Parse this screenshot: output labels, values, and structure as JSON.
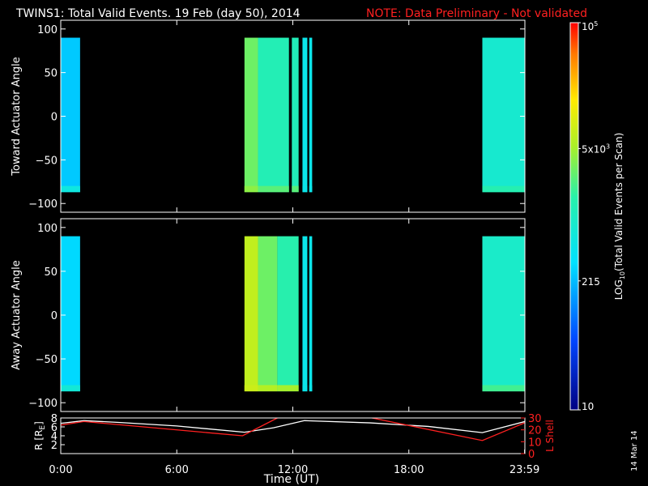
{
  "title": "TWINS1: Total Valid Events. 19 Feb (day  50), 2014",
  "note": "NOTE: Data Preliminary - Not validated",
  "date_stamp": "14 Mar 14",
  "colors": {
    "background": "#000000",
    "axes": "#ffffff",
    "note": "#ff2020",
    "r_line": "#ffffff",
    "lshell_line": "#ff2020"
  },
  "colorbar": {
    "label_main": "LOG",
    "label_sub": "10",
    "label_rest": "(Total Valid Events per Scan)",
    "scale": "log",
    "range": [
      10,
      100000
    ],
    "ticks": [
      {
        "value": 100000,
        "base": "10",
        "exp": "5"
      },
      {
        "value": 5000,
        "base": "5x10",
        "exp": "3"
      },
      {
        "value": 215,
        "base": "215",
        "exp": ""
      },
      {
        "value": 10,
        "base": "10",
        "exp": ""
      }
    ]
  },
  "chart_data": [
    {
      "type": "heatmap",
      "ylabel": "Toward Actuator Angle",
      "xlim": [
        0,
        24
      ],
      "ylim": [
        -110,
        110
      ],
      "yticks": [
        -100,
        -50,
        0,
        50,
        100
      ],
      "blocks": [
        {
          "t_start": 0.0,
          "t_end": 1.0,
          "angle_range": [
            -87,
            90
          ],
          "events": 250,
          "edge_events": 600
        },
        {
          "t_start": 9.5,
          "t_end": 10.2,
          "angle_range": [
            -87,
            90
          ],
          "events": 3000,
          "edge_events": 4000
        },
        {
          "t_start": 10.2,
          "t_end": 11.8,
          "angle_range": [
            -87,
            90
          ],
          "events": 1300,
          "edge_events": 2500
        },
        {
          "t_start": 11.95,
          "t_end": 12.3,
          "angle_range": [
            -87,
            90
          ],
          "events": 1200,
          "edge_events": 2500
        },
        {
          "t_start": 12.5,
          "t_end": 12.75,
          "angle_range": [
            -87,
            90
          ],
          "events": 500,
          "edge_events": 500
        },
        {
          "t_start": 12.85,
          "t_end": 13.0,
          "angle_range": [
            -87,
            90
          ],
          "events": 500,
          "edge_events": 500
        },
        {
          "t_start": 21.8,
          "t_end": 24.0,
          "angle_range": [
            -87,
            90
          ],
          "events": 800,
          "edge_events": 1400
        }
      ]
    },
    {
      "type": "heatmap",
      "ylabel": "Away Actuator Angle",
      "xlim": [
        0,
        24
      ],
      "ylim": [
        -110,
        110
      ],
      "yticks": [
        -100,
        -50,
        0,
        50,
        100
      ],
      "blocks": [
        {
          "t_start": 0.0,
          "t_end": 1.0,
          "angle_range": [
            -87,
            90
          ],
          "events": 300,
          "edge_events": 700
        },
        {
          "t_start": 9.5,
          "t_end": 10.2,
          "angle_range": [
            -87,
            90
          ],
          "events": 7000,
          "edge_events": 8000
        },
        {
          "t_start": 10.2,
          "t_end": 11.2,
          "angle_range": [
            -87,
            90
          ],
          "events": 3000,
          "edge_events": 6000
        },
        {
          "t_start": 11.2,
          "t_end": 12.3,
          "angle_range": [
            -87,
            90
          ],
          "events": 1500,
          "edge_events": 5000
        },
        {
          "t_start": 12.5,
          "t_end": 12.75,
          "angle_range": [
            -87,
            90
          ],
          "events": 500,
          "edge_events": 500
        },
        {
          "t_start": 12.85,
          "t_end": 13.0,
          "angle_range": [
            -87,
            90
          ],
          "events": 500,
          "edge_events": 500
        },
        {
          "t_start": 21.8,
          "t_end": 24.0,
          "angle_range": [
            -87,
            90
          ],
          "events": 900,
          "edge_events": 2000
        }
      ]
    },
    {
      "type": "line",
      "ylabel": "R [R",
      "ylabel_sub": "E",
      "ylabel_end": "]",
      "y2label": "L Shell",
      "xlabel": "Time (UT)",
      "xlim": [
        0,
        24
      ],
      "ylim": [
        0,
        8
      ],
      "y2lim": [
        0,
        30
      ],
      "x_tick_labels": [
        {
          "t": 0,
          "label": "0:00"
        },
        {
          "t": 6,
          "label": "6:00"
        },
        {
          "t": 12,
          "label": "12:00"
        },
        {
          "t": 18,
          "label": "18:00"
        },
        {
          "t": 23.983,
          "label": "23:59"
        }
      ],
      "yticks": [
        2,
        4,
        6,
        8
      ],
      "y2ticks": [
        0,
        10,
        20,
        30
      ],
      "series": [
        {
          "axis": "R",
          "x": [
            0,
            1.2,
            3,
            6,
            9.5,
            11,
            12.6,
            16,
            19,
            21.8,
            24
          ],
          "y": [
            6.8,
            7.4,
            7.0,
            6.2,
            4.8,
            5.8,
            7.4,
            6.9,
            6.1,
            4.7,
            7.2
          ]
        },
        {
          "axis": "L",
          "x": [
            0,
            1.2,
            9.4,
            11.2,
            11.3,
            null,
            16.0,
            16.1,
            21.8,
            24
          ],
          "y": [
            24,
            27,
            15,
            30,
            31,
            null,
            31,
            30,
            11,
            26
          ]
        }
      ]
    }
  ]
}
